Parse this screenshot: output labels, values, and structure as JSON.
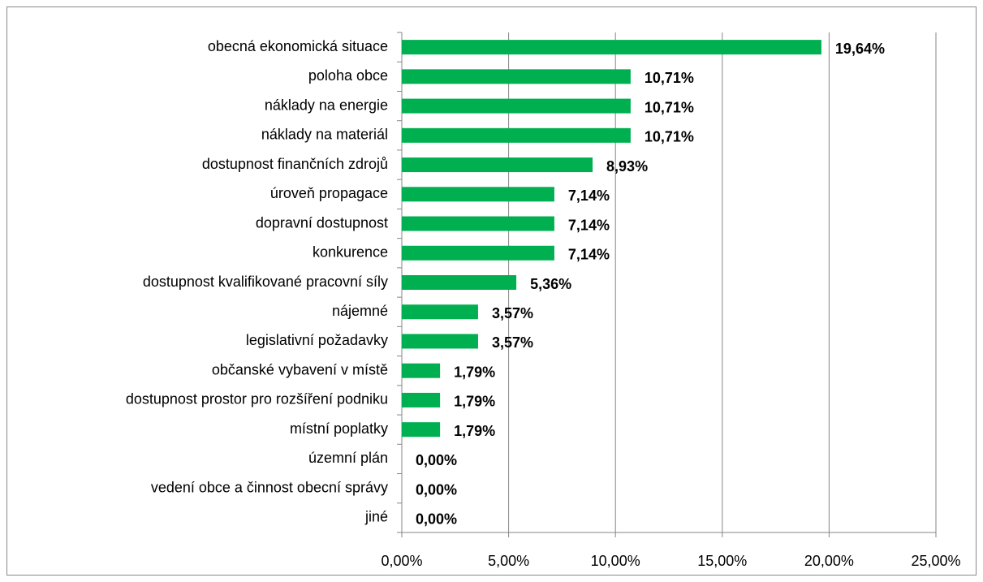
{
  "chart_data": {
    "type": "barh",
    "categories": [
      "obecná ekonomická situace",
      "poloha obce",
      "náklady na energie",
      "náklady na materiál",
      "dostupnost finančních zdrojů",
      "úroveň propagace",
      "dopravní dostupnost",
      "konkurence",
      "dostupnost kvalifikované pracovní síly",
      "nájemné",
      "legislativní požadavky",
      "občanské vybavení v místě",
      "dostupnost prostor pro rozšíření podniku",
      "místní poplatky",
      "územní plán",
      "vedení obce a činnost obecní správy",
      "jiné"
    ],
    "values": [
      19.64,
      10.71,
      10.71,
      10.71,
      8.93,
      7.14,
      7.14,
      7.14,
      5.36,
      3.57,
      3.57,
      1.79,
      1.79,
      1.79,
      0,
      0,
      0
    ],
    "value_labels": [
      "19,64%",
      "10,71%",
      "10,71%",
      "10,71%",
      "8,93%",
      "7,14%",
      "7,14%",
      "7,14%",
      "5,36%",
      "3,57%",
      "3,57%",
      "1,79%",
      "1,79%",
      "1,79%",
      "0,00%",
      "0,00%",
      "0,00%"
    ],
    "color": "#00b050",
    "xlim": [
      0,
      25
    ],
    "xticks": [
      {
        "value": 0,
        "label": "0,00%"
      },
      {
        "value": 5,
        "label": "5,00%"
      },
      {
        "value": 10,
        "label": "10,00%"
      },
      {
        "value": 15,
        "label": "15,00%"
      },
      {
        "value": 20,
        "label": "20,00%"
      },
      {
        "value": 25,
        "label": "25,00%"
      }
    ],
    "grid": true
  }
}
